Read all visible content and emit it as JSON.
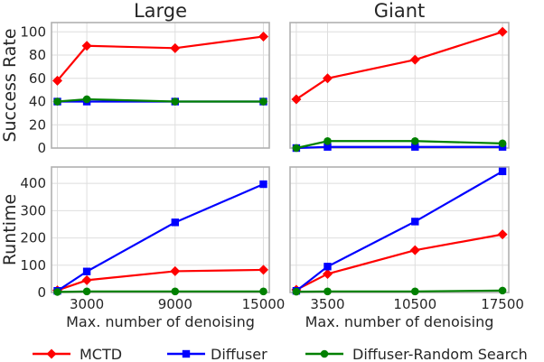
{
  "chart_data": [
    {
      "type": "line",
      "title": "Large",
      "xlabel": "",
      "ylabel": "Success Rate",
      "x": [
        1000,
        3000,
        9000,
        15000
      ],
      "xticks": [],
      "yticks": [
        "0",
        "20",
        "40",
        "60",
        "80",
        "100"
      ],
      "xlim": [
        600,
        15400
      ],
      "ylim": [
        0,
        108
      ],
      "series": [
        {
          "name": "MCTD",
          "values": [
            58,
            88,
            86,
            96
          ]
        },
        {
          "name": "Diffuser",
          "values": [
            40,
            40,
            40,
            40
          ]
        },
        {
          "name": "Diffuser-Random Search",
          "values": [
            40,
            42,
            40,
            40
          ]
        }
      ]
    },
    {
      "type": "line",
      "title": "Giant",
      "xlabel": "",
      "ylabel": "",
      "x": [
        1000,
        3500,
        10500,
        17500
      ],
      "xticks": [],
      "yticks": [],
      "xlim": [
        500,
        18000
      ],
      "ylim": [
        0,
        108
      ],
      "series": [
        {
          "name": "MCTD",
          "values": [
            42,
            60,
            76,
            100
          ]
        },
        {
          "name": "Diffuser",
          "values": [
            0,
            1,
            1,
            1
          ]
        },
        {
          "name": "Diffuser-Random Search",
          "values": [
            0,
            6,
            6,
            4
          ]
        }
      ]
    },
    {
      "type": "line",
      "title": "",
      "xlabel": "Max. number of denoising",
      "ylabel": "Runtime",
      "x": [
        1000,
        3000,
        9000,
        15000
      ],
      "xticks": [
        "3000",
        "9000",
        "15000"
      ],
      "yticks": [
        "0",
        "100",
        "200",
        "300",
        "400"
      ],
      "xlim": [
        600,
        15400
      ],
      "ylim": [
        0,
        460
      ],
      "series": [
        {
          "name": "MCTD",
          "values": [
            8,
            45,
            78,
            83
          ]
        },
        {
          "name": "Diffuser",
          "values": [
            6,
            77,
            257,
            397
          ]
        },
        {
          "name": "Diffuser-Random Search",
          "values": [
            2,
            4,
            4,
            4
          ]
        }
      ]
    },
    {
      "type": "line",
      "title": "",
      "xlabel": "Max. number of denoising",
      "ylabel": "",
      "x": [
        1000,
        3500,
        10500,
        17500
      ],
      "xticks": [
        "3500",
        "10500",
        "17500"
      ],
      "yticks": [],
      "xlim": [
        500,
        18000
      ],
      "ylim": [
        0,
        460
      ],
      "series": [
        {
          "name": "MCTD",
          "values": [
            10,
            68,
            155,
            213
          ]
        },
        {
          "name": "Diffuser",
          "values": [
            6,
            95,
            260,
            444
          ]
        },
        {
          "name": "Diffuser-Random Search",
          "values": [
            3,
            4,
            4,
            7
          ]
        }
      ]
    }
  ],
  "legend": {
    "placement": "bottom",
    "items": [
      {
        "label": "MCTD",
        "color": "#ff0000",
        "marker": "diamond"
      },
      {
        "label": "Diffuser",
        "color": "#0000ff",
        "marker": "square"
      },
      {
        "label": "Diffuser-Random Search",
        "color": "#008000",
        "marker": "circle"
      }
    ]
  },
  "grid": true
}
